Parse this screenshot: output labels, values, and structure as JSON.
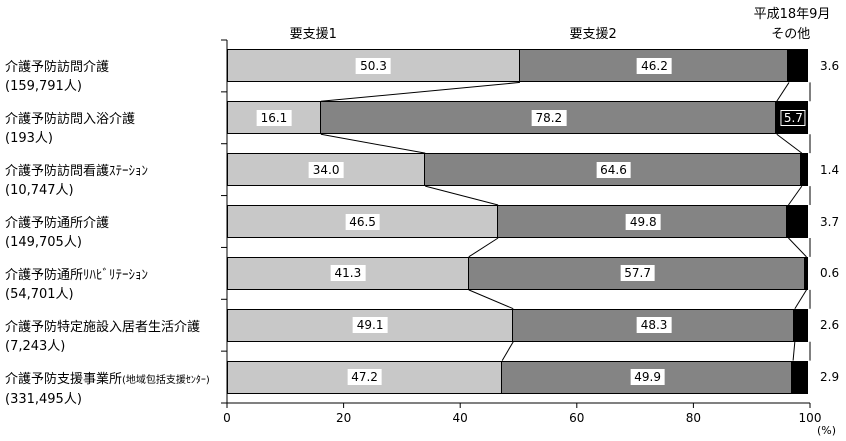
{
  "chart_data": {
    "type": "bar",
    "orientation": "horizontal",
    "stacked": true,
    "normalized_to_100": true,
    "date_label": "平成18年9月",
    "x_unit": "(%)",
    "xlim": [
      0,
      100
    ],
    "xticks": [
      0,
      20,
      40,
      60,
      80,
      100
    ],
    "grid": false,
    "legend_position": "column-headers-above-plot",
    "header_positions_pct": [
      14.8,
      62.8,
      96.7
    ],
    "categories": [
      {
        "label": "介護予防訪問介護",
        "suffix": "",
        "count": "(159,791人)"
      },
      {
        "label": "介護予防訪問入浴介護",
        "suffix": "",
        "count": "(193人)"
      },
      {
        "label": "介護予防訪問看護ｽﾃｰｼｮﾝ",
        "suffix": "",
        "count": "(10,747人)"
      },
      {
        "label": "介護予防通所介護",
        "suffix": "",
        "count": "(149,705人)"
      },
      {
        "label": "介護予防通所ﾘﾊﾋﾞﾘﾃｰｼｮﾝ",
        "suffix": "",
        "count": "(54,701人)"
      },
      {
        "label": "介護予防特定施設入居者生活介護",
        "suffix": "",
        "count": "(7,243人)"
      },
      {
        "label": "介護予防支援事業所",
        "suffix": "(地域包括支援ｾﾝﾀｰ)",
        "count": "(331,495人)"
      }
    ],
    "series": [
      {
        "name": "要支援1",
        "color": "#c8c8c8",
        "values": [
          50.3,
          16.1,
          34.0,
          46.5,
          41.3,
          49.1,
          47.2
        ]
      },
      {
        "name": "要支援2",
        "color": "#848484",
        "values": [
          46.2,
          78.2,
          64.6,
          49.8,
          57.7,
          48.3,
          49.9
        ]
      },
      {
        "name": "その他",
        "color": "#000000",
        "values": [
          3.6,
          5.7,
          1.4,
          3.7,
          0.6,
          2.6,
          2.9
        ]
      }
    ]
  }
}
